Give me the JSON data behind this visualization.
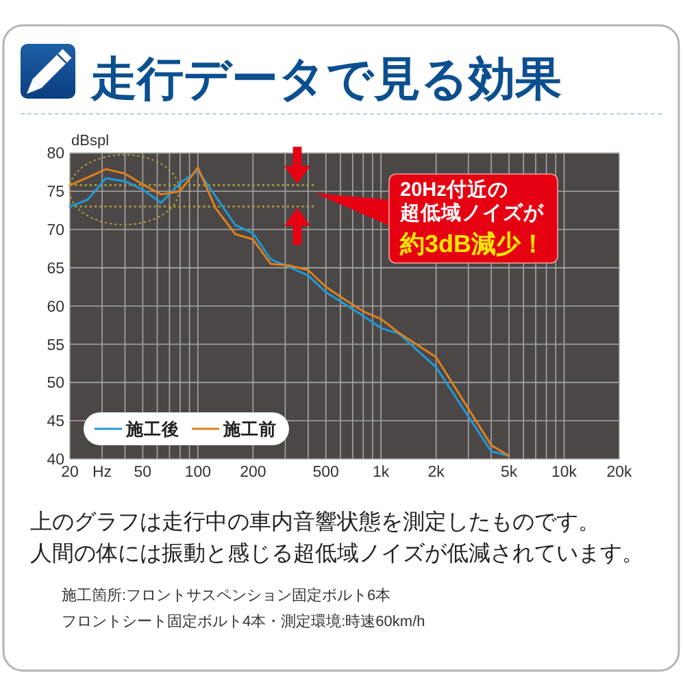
{
  "chart_data": {
    "type": "line",
    "title": "走行データで見る効果",
    "ylabel": "dBspl",
    "log": "x",
    "xlim": [
      20,
      20000
    ],
    "xticks": [
      20,
      {
        "value": 30,
        "label": "Hz"
      },
      50,
      100,
      200,
      500,
      {
        "value": 1000,
        "label": "1k"
      },
      {
        "value": 2000,
        "label": "2k"
      },
      {
        "value": 5000,
        "label": "5k"
      },
      {
        "value": 10000,
        "label": "10k"
      },
      {
        "value": 20000,
        "label": "20k"
      }
    ],
    "ylim": [
      40,
      80
    ],
    "yticks": [
      40,
      45,
      50,
      55,
      60,
      65,
      70,
      75,
      80
    ],
    "grid": true,
    "legend": "bottom left",
    "series": [
      {
        "name": "施工後",
        "color": "#1f9ad8",
        "x": [
          20,
          25,
          31.5,
          40,
          50,
          63,
          80,
          100,
          160,
          200,
          250,
          315,
          400,
          500,
          630,
          800,
          1000,
          1250,
          2000,
          4000,
          5000
        ],
        "values": [
          73.0,
          73.9,
          76.7,
          76.3,
          75.2,
          73.5,
          76.1,
          77.7,
          70.6,
          69.5,
          66.1,
          65.1,
          64.0,
          61.8,
          60.3,
          58.7,
          57.1,
          56.4,
          52.0,
          41.0,
          40.4
        ]
      },
      {
        "name": "施工前",
        "color": "#e0801c",
        "x": [
          20,
          25,
          31.5,
          40,
          50,
          63,
          80,
          100,
          125,
          160,
          200,
          250,
          315,
          400,
          500,
          630,
          800,
          1000,
          1250,
          2000,
          4000,
          5000
        ],
        "values": [
          75.8,
          76.8,
          77.9,
          77.3,
          75.9,
          74.6,
          75.0,
          78.1,
          72.8,
          69.4,
          68.7,
          65.5,
          65.3,
          64.7,
          62.5,
          60.9,
          59.3,
          58.3,
          56.5,
          53.3,
          41.8,
          40.4
        ]
      }
    ],
    "ref_lines": [
      {
        "axis": "y",
        "value": 75.8,
        "color": "#b3a63a",
        "line_style": "dotted"
      },
      {
        "axis": "y",
        "value": 73.0,
        "color": "#b3a63a",
        "line_style": "dotted"
      }
    ],
    "annotations": [
      "20Hz付近の",
      "超低域ノイズが",
      "約3dB減少！",
      "上のグラフは走行中の車内音響状態を測定したものです。",
      "人間の体には振動と感じる超低域ノイズが低減されています。",
      "施工箇所:フロントサスペンション固定ボルト6本",
      "フロントシート固定ボルト4本・測定環境:時速60km/h"
    ]
  }
}
